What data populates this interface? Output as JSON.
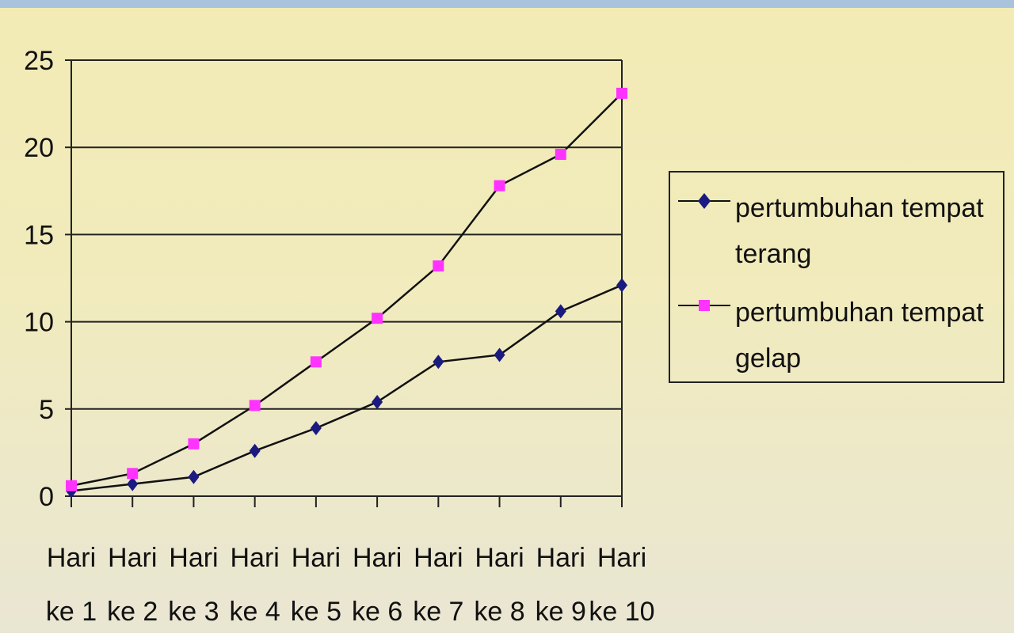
{
  "chart_data": {
    "type": "line",
    "categories": [
      [
        "Hari",
        "ke 1"
      ],
      [
        "Hari",
        "ke 2"
      ],
      [
        "Hari",
        "ke 3"
      ],
      [
        "Hari",
        "ke 4"
      ],
      [
        "Hari",
        "ke 5"
      ],
      [
        "Hari",
        "ke 6"
      ],
      [
        "Hari",
        "ke 7"
      ],
      [
        "Hari",
        "ke 8"
      ],
      [
        "Hari",
        "ke 9"
      ],
      [
        "Hari",
        "ke 10"
      ]
    ],
    "series": [
      {
        "name": "pertumbuhan tempat terang",
        "marker": "diamond",
        "color": "#1a1a80",
        "values": [
          0.3,
          0.7,
          1.1,
          2.6,
          3.9,
          5.4,
          7.7,
          8.1,
          10.6,
          12.1
        ]
      },
      {
        "name": "pertumbuhan tempat gelap",
        "marker": "square",
        "color": "#ff33ff",
        "values": [
          0.6,
          1.3,
          3.0,
          5.2,
          7.7,
          10.2,
          13.2,
          17.8,
          19.6,
          23.1
        ]
      }
    ],
    "ylim": [
      0,
      25
    ],
    "yticks": [
      "0",
      "5",
      "10",
      "15",
      "20",
      "25"
    ],
    "grid": "horizontal",
    "legend_position": "right",
    "title": "",
    "xlabel": "",
    "ylabel": ""
  },
  "legend": {
    "items": [
      {
        "label_lines": [
          "pertumbuhan tempat",
          "terang"
        ]
      },
      {
        "label_lines": [
          "pertumbuhan tempat gelap"
        ]
      }
    ]
  }
}
